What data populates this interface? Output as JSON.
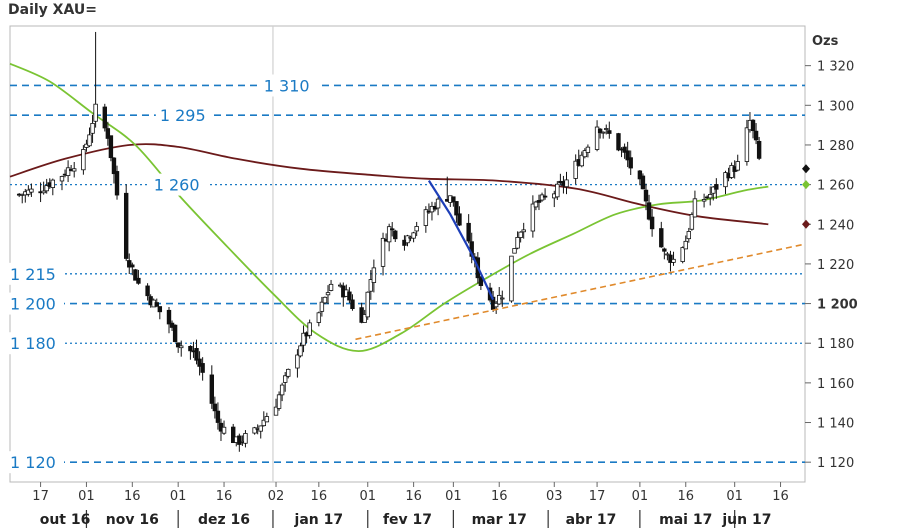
{
  "window": {
    "title": "Daily XAU="
  },
  "chart_data": {
    "type": "line",
    "title": "Daily XAU=",
    "ylabel": "Ozs",
    "ylim": [
      1110,
      1340
    ],
    "y_ticks": [
      {
        "value": 1120,
        "label": "1 120",
        "bold": false
      },
      {
        "value": 1140,
        "label": "1 140",
        "bold": false
      },
      {
        "value": 1160,
        "label": "1 160",
        "bold": false
      },
      {
        "value": 1180,
        "label": "1 180",
        "bold": false
      },
      {
        "value": 1200,
        "label": "1 200",
        "bold": true
      },
      {
        "value": 1220,
        "label": "1 220",
        "bold": false
      },
      {
        "value": 1240,
        "label": "1 240",
        "bold": false
      },
      {
        "value": 1260,
        "label": "1 260",
        "bold": false
      },
      {
        "value": 1280,
        "label": "1 280",
        "bold": false
      },
      {
        "value": 1300,
        "label": "1 300",
        "bold": false
      },
      {
        "value": 1320,
        "label": "1 320",
        "bold": false
      }
    ],
    "x_ticks": [
      {
        "date": "2016-10-17",
        "label": "17"
      },
      {
        "date": "2016-11-01",
        "label": "01"
      },
      {
        "date": "2016-11-16",
        "label": "16"
      },
      {
        "date": "2016-12-01",
        "label": "01"
      },
      {
        "date": "2016-12-16",
        "label": "16"
      },
      {
        "date": "2017-01-02",
        "label": "02"
      },
      {
        "date": "2017-01-16",
        "label": "16"
      },
      {
        "date": "2017-02-01",
        "label": "01"
      },
      {
        "date": "2017-02-16",
        "label": "16"
      },
      {
        "date": "2017-03-01",
        "label": "01"
      },
      {
        "date": "2017-03-16",
        "label": "16"
      },
      {
        "date": "2017-04-03",
        "label": "03"
      },
      {
        "date": "2017-04-17",
        "label": "17"
      },
      {
        "date": "2017-05-01",
        "label": "01"
      },
      {
        "date": "2017-05-16",
        "label": "16"
      },
      {
        "date": "2017-06-01",
        "label": "01"
      },
      {
        "date": "2017-06-16",
        "label": "16"
      }
    ],
    "months": [
      {
        "label": "out 16",
        "date": "2016-10-25"
      },
      {
        "label": "nov 16",
        "date": "2016-11-16"
      },
      {
        "label": "dez 16",
        "date": "2016-12-16"
      },
      {
        "label": "jan 17",
        "date": "2017-01-16"
      },
      {
        "label": "fev 17",
        "date": "2017-02-14"
      },
      {
        "label": "mar 17",
        "date": "2017-03-16"
      },
      {
        "label": "abr 17",
        "date": "2017-04-15"
      },
      {
        "label": "mai 17",
        "date": "2017-05-16"
      },
      {
        "label": "jun 17",
        "date": "2017-06-05"
      }
    ],
    "month_separators": [
      "2016-11-01",
      "2016-12-01",
      "2017-01-01",
      "2017-02-01",
      "2017-03-01",
      "2017-04-01",
      "2017-05-01",
      "2017-06-01"
    ],
    "levels": [
      {
        "value": 1310,
        "label": "1 310",
        "style": "dashed",
        "label_date": "2016-12-29"
      },
      {
        "value": 1295,
        "label": "1 295",
        "style": "dashed",
        "label_date": "2016-11-25"
      },
      {
        "value": 1260,
        "label": "1 260",
        "style": "dotted",
        "label_date": "2016-11-23"
      },
      {
        "value": 1215,
        "label": "1 215",
        "style": "dotted",
        "label_date": "2016-10-07"
      },
      {
        "value": 1200,
        "label": "1 200",
        "style": "dashed",
        "label_date": "2016-10-07"
      },
      {
        "value": 1180,
        "label": "1 180",
        "style": "dotted",
        "label_date": "2016-10-07"
      },
      {
        "value": 1120,
        "label": "1 120",
        "style": "dashed",
        "label_date": "2016-10-07"
      }
    ],
    "colors": {
      "candle": "#111111",
      "level_line": "#1a7ac4",
      "ma_short": "#7ac433",
      "ma_long": "#6b1a1a",
      "trendline": "#e08a2c",
      "highlight": "#1e3fb8",
      "grid": "#d0d0d0"
    },
    "series": [
      {
        "kind": "price_close",
        "points": [
          [
            "2016-10-10",
            1255
          ],
          [
            "2016-10-17",
            1258
          ],
          [
            "2016-10-24",
            1265
          ],
          [
            "2016-10-31",
            1275
          ],
          [
            "2016-11-04",
            1298
          ],
          [
            "2016-11-08",
            1285
          ],
          [
            "2016-11-10",
            1265
          ],
          [
            "2016-11-14",
            1225
          ],
          [
            "2016-11-18",
            1210
          ],
          [
            "2016-11-23",
            1200
          ],
          [
            "2016-11-28",
            1190
          ],
          [
            "2016-12-01",
            1180
          ],
          [
            "2016-12-06",
            1175
          ],
          [
            "2016-12-09",
            1165
          ],
          [
            "2016-12-14",
            1140
          ],
          [
            "2016-12-20",
            1130
          ],
          [
            "2016-12-26",
            1135
          ],
          [
            "2017-01-02",
            1150
          ],
          [
            "2017-01-06",
            1165
          ],
          [
            "2017-01-10",
            1180
          ],
          [
            "2017-01-16",
            1195
          ],
          [
            "2017-01-20",
            1210
          ],
          [
            "2017-01-25",
            1205
          ],
          [
            "2017-01-30",
            1190
          ],
          [
            "2017-02-03",
            1220
          ],
          [
            "2017-02-08",
            1238
          ],
          [
            "2017-02-13",
            1232
          ],
          [
            "2017-02-17",
            1240
          ],
          [
            "2017-02-23",
            1250
          ],
          [
            "2017-02-28",
            1255
          ],
          [
            "2017-03-03",
            1240
          ],
          [
            "2017-03-07",
            1225
          ],
          [
            "2017-03-10",
            1210
          ],
          [
            "2017-03-14",
            1200
          ],
          [
            "2017-03-17",
            1205
          ],
          [
            "2017-03-22",
            1235
          ],
          [
            "2017-03-28",
            1250
          ],
          [
            "2017-04-03",
            1256
          ],
          [
            "2017-04-07",
            1262
          ],
          [
            "2017-04-12",
            1275
          ],
          [
            "2017-04-17",
            1290
          ],
          [
            "2017-04-21",
            1285
          ],
          [
            "2017-04-26",
            1275
          ],
          [
            "2017-05-01",
            1260
          ],
          [
            "2017-05-05",
            1240
          ],
          [
            "2017-05-09",
            1225
          ],
          [
            "2017-05-12",
            1222
          ],
          [
            "2017-05-16",
            1232
          ],
          [
            "2017-05-19",
            1250
          ],
          [
            "2017-05-24",
            1255
          ],
          [
            "2017-05-29",
            1265
          ],
          [
            "2017-06-02",
            1270
          ],
          [
            "2017-06-06",
            1292
          ],
          [
            "2017-06-08",
            1280
          ],
          [
            "2017-06-10",
            1265
          ]
        ]
      },
      {
        "kind": "ma_short",
        "points": [
          [
            "2016-10-07",
            1321
          ],
          [
            "2016-10-20",
            1312
          ],
          [
            "2016-11-03",
            1296
          ],
          [
            "2016-11-17",
            1280
          ],
          [
            "2016-12-01",
            1255
          ],
          [
            "2016-12-15",
            1232
          ],
          [
            "2017-01-01",
            1205
          ],
          [
            "2017-01-15",
            1185
          ],
          [
            "2017-01-29",
            1176
          ],
          [
            "2017-02-12",
            1185
          ],
          [
            "2017-02-26",
            1200
          ],
          [
            "2017-03-12",
            1213
          ],
          [
            "2017-03-26",
            1225
          ],
          [
            "2017-04-09",
            1235
          ],
          [
            "2017-04-23",
            1245
          ],
          [
            "2017-05-07",
            1250
          ],
          [
            "2017-05-21",
            1252
          ],
          [
            "2017-06-04",
            1257
          ],
          [
            "2017-06-12",
            1259
          ]
        ]
      },
      {
        "kind": "ma_long",
        "points": [
          [
            "2016-10-07",
            1264
          ],
          [
            "2016-10-25",
            1273
          ],
          [
            "2016-11-15",
            1280
          ],
          [
            "2016-12-01",
            1279
          ],
          [
            "2016-12-20",
            1273
          ],
          [
            "2017-01-10",
            1268
          ],
          [
            "2017-02-01",
            1265
          ],
          [
            "2017-02-20",
            1263
          ],
          [
            "2017-03-15",
            1262
          ],
          [
            "2017-04-10",
            1258
          ],
          [
            "2017-05-01",
            1250
          ],
          [
            "2017-05-20",
            1244
          ],
          [
            "2017-06-12",
            1240
          ]
        ]
      },
      {
        "kind": "trendline",
        "points": [
          [
            "2017-01-28",
            1182
          ],
          [
            "2017-06-24",
            1230
          ]
        ]
      },
      {
        "kind": "highlight",
        "points": [
          [
            "2017-02-21",
            1262
          ],
          [
            "2017-02-28",
            1245
          ],
          [
            "2017-03-07",
            1225
          ],
          [
            "2017-03-14",
            1202
          ]
        ]
      }
    ],
    "markers": [
      {
        "value": 1268,
        "color": "#111111"
      },
      {
        "value": 1260,
        "color": "#7ac433"
      },
      {
        "value": 1240,
        "color": "#6b1a1a"
      }
    ]
  }
}
